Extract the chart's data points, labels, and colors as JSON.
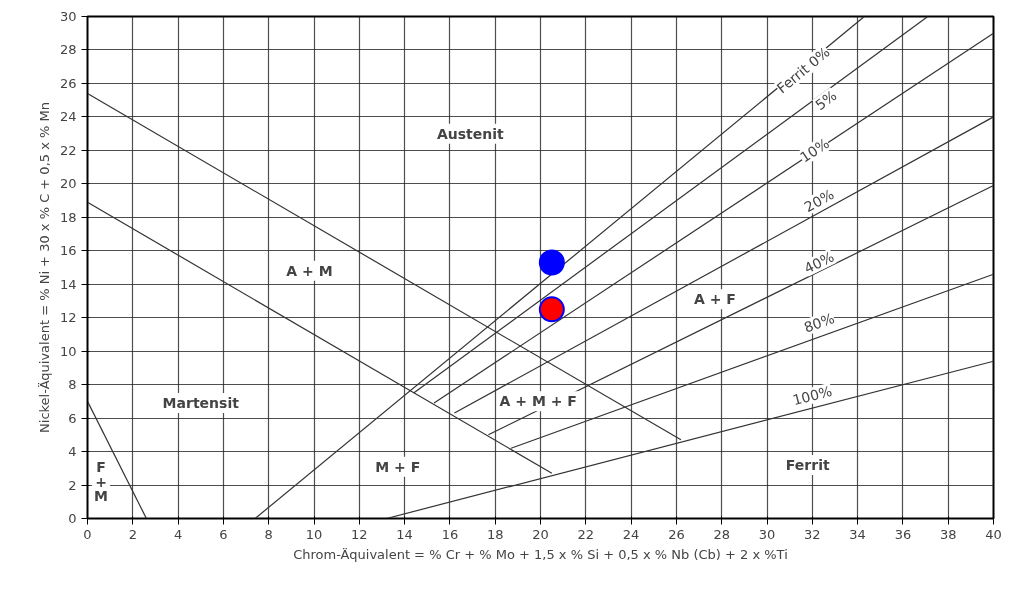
{
  "chart_data": {
    "type": "line",
    "xlabel": "Chrom-Äquivalent = % Cr + % Mo + 1,5 x % Si + 0,5 x % Nb (Cb) + 2 x %Ti",
    "ylabel": "Nickel-Äquivalent = % Ni + 30 x % C + 0,5 x % Mn",
    "xlim": [
      0,
      40
    ],
    "ylim": [
      0,
      30
    ],
    "xticks": [
      0,
      2,
      4,
      6,
      8,
      10,
      12,
      14,
      16,
      18,
      20,
      22,
      24,
      26,
      28,
      30,
      32,
      34,
      36,
      38,
      40
    ],
    "yticks": [
      0,
      2,
      4,
      6,
      8,
      10,
      12,
      14,
      16,
      18,
      20,
      22,
      24,
      26,
      28,
      30
    ],
    "grid": true,
    "series": [
      {
        "color": "#333333",
        "x": [
          0,
          26.2
        ],
        "values": [
          25.4,
          4.7
        ]
      },
      {
        "color": "#333333",
        "x": [
          0,
          20.5
        ],
        "values": [
          18.9,
          2.7
        ]
      },
      {
        "color": "#333333",
        "x": [
          0,
          2.6
        ],
        "values": [
          7,
          0
        ]
      },
      {
        "color": "#333333",
        "x": [
          7.4,
          34.3
        ],
        "values": [
          0,
          30
        ]
      },
      {
        "color": "#333333",
        "x": [
          14.4,
          37.1
        ],
        "values": [
          7.5,
          30
        ]
      },
      {
        "color": "#333333",
        "x": [
          15.3,
          40
        ],
        "values": [
          6.9,
          29
        ]
      },
      {
        "color": "#333333",
        "x": [
          16.2,
          40
        ],
        "values": [
          6.3,
          24
        ]
      },
      {
        "color": "#333333",
        "x": [
          17.7,
          40
        ],
        "values": [
          5,
          19.9
        ]
      },
      {
        "color": "#333333",
        "x": [
          18.7,
          40
        ],
        "values": [
          4.2,
          14.6
        ]
      },
      {
        "color": "#333333",
        "x": [
          13.2,
          40
        ],
        "values": [
          0,
          9.4
        ]
      },
      {
        "type": "scatter",
        "color": "#0000ff",
        "x": [
          20.5
        ],
        "values": [
          15.3
        ]
      },
      {
        "type": "scatter",
        "color": "#ff0000",
        "x": [
          20.5
        ],
        "values": [
          12.5
        ]
      }
    ],
    "annotations": [
      "Austenit",
      "A + M",
      "Martensit",
      "F\n+\nM",
      "M + F",
      "A + M + F",
      "A + F",
      "Ferrit",
      {
        "text": "Ferrit 0%",
        "x": 31.6,
        "y": 26.8
      },
      {
        "text": "5%",
        "x": 32.6,
        "y": 25
      },
      {
        "text": "10%",
        "x": 32.1,
        "y": 22
      },
      {
        "text": "20%",
        "x": 32.3,
        "y": 19
      },
      {
        "text": "40%",
        "x": 32.3,
        "y": 15.3
      },
      {
        "text": "80%",
        "x": 32.3,
        "y": 11.7
      },
      {
        "text": "100%",
        "x": 32,
        "y": 7.35
      }
    ]
  }
}
